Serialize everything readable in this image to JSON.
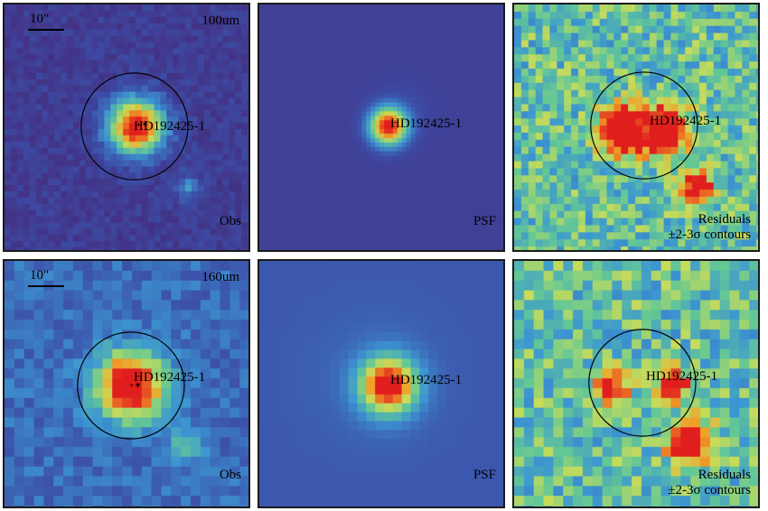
{
  "target": "HD192425-1",
  "scale_label": "10\"",
  "rows": [
    {
      "band": "100um",
      "panels": [
        {
          "kind": "obs",
          "label": "Obs"
        },
        {
          "kind": "psf",
          "label": "PSF"
        },
        {
          "kind": "res",
          "label_1": "Residuals",
          "label_2": "±2-3σ contours"
        }
      ]
    },
    {
      "band": "160um",
      "panels": [
        {
          "kind": "obs",
          "label": "Obs"
        },
        {
          "kind": "psf",
          "label": "PSF"
        },
        {
          "kind": "res",
          "label_1": "Residuals",
          "label_2": "±2-3σ contours"
        }
      ]
    }
  ],
  "colors": {
    "frame": "#1a1a1a",
    "obs_bg_100": "#5a3f8f",
    "psf_bg_100": "#4b35a0",
    "obs_bg_160": "#3b6bb5",
    "psf_bg_160": "#4a5bb0",
    "peak": "#e02020"
  }
}
